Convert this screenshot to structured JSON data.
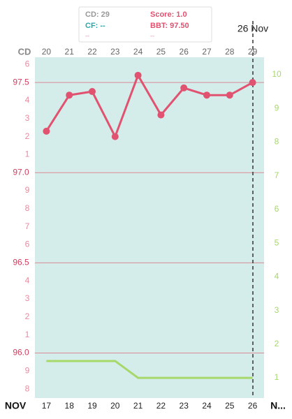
{
  "chart_data": {
    "type": "line",
    "tooltip": {
      "cd": "CD: 29",
      "score": "Score: 1.0",
      "cf": "CF: --",
      "bbt": "BBT: 97.50",
      "note1": "--",
      "note2": "--"
    },
    "marker_label": "26 Nov",
    "top_axis_label": "CD",
    "categories": [
      "20",
      "21",
      "22",
      "23",
      "24",
      "25",
      "26",
      "27",
      "28",
      "29"
    ],
    "bottom_axis_label": "NOV",
    "dates": [
      "17",
      "18",
      "19",
      "20",
      "21",
      "22",
      "23",
      "24",
      "25",
      "26"
    ],
    "bottom_axis_end": "N...",
    "series": [
      {
        "name": "BBT",
        "color": "#e05270",
        "values": [
          97.23,
          97.43,
          97.45,
          97.2,
          97.54,
          97.32,
          97.47,
          97.43,
          97.43,
          97.5
        ]
      },
      {
        "name": "Score",
        "color": "#a6d86a",
        "axis": "y2",
        "values": [
          1.5,
          1.5,
          1.5,
          1.5,
          1,
          1,
          1,
          1,
          1,
          1
        ]
      }
    ],
    "ylim": [
      95.75,
      97.64
    ],
    "yticks": [
      {
        "value": 96,
        "label": "96.0"
      },
      96.5,
      {
        "value": 97,
        "label": "97.0"
      },
      97.5
    ],
    "yminor_ticks": [
      {
        "value": 95.8,
        "label": "8"
      },
      {
        "value": 95.9,
        "label": "9"
      },
      {
        "value": 96.1,
        "label": "1"
      },
      {
        "value": 96.2,
        "label": "2"
      },
      {
        "value": 96.3,
        "label": "3"
      },
      {
        "value": 96.4,
        "label": "4"
      },
      {
        "value": 96.6,
        "label": "6"
      },
      {
        "value": 96.7,
        "label": "7"
      },
      {
        "value": 96.8,
        "label": "8"
      },
      {
        "value": 96.9,
        "label": "9"
      },
      {
        "value": 97.1,
        "label": "1"
      },
      {
        "value": 97.2,
        "label": "2"
      },
      {
        "value": 97.3,
        "label": "3"
      },
      {
        "value": 97.4,
        "label": "4"
      },
      {
        "value": 97.6,
        "label": "6"
      }
    ],
    "y2lim": [
      0.4,
      10.52
    ],
    "y2ticks": [
      1,
      2,
      3,
      4,
      5,
      6,
      7,
      8,
      9,
      10
    ],
    "grid": true
  }
}
